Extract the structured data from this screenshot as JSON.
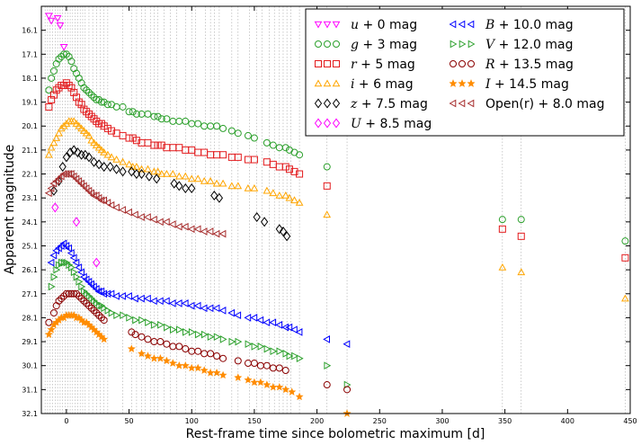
{
  "chart_data": {
    "type": "scatter",
    "title": "",
    "xlabel": "Rest-frame time since bolometric maximum [d]",
    "ylabel": "Apparent magnitude",
    "xlim": [
      -20,
      450
    ],
    "ylim": [
      32.1,
      15.1
    ],
    "x_ticks": [
      0,
      50,
      100,
      150,
      200,
      250,
      300,
      350,
      400,
      450
    ],
    "x_tick_labels": [
      "0",
      "50",
      "100",
      "150",
      "200",
      "250",
      "300",
      "350",
      "400",
      "450"
    ],
    "y_ticks": [
      16.1,
      17.1,
      18.1,
      19.1,
      20.1,
      21.1,
      22.1,
      23.1,
      24.1,
      25.1,
      26.1,
      27.1,
      28.1,
      29.1,
      30.1,
      31.1,
      32.1
    ],
    "y_tick_labels": [
      "16.1",
      "17.1",
      "18.1",
      "19.1",
      "20.1",
      "21.1",
      "22.1",
      "23.1",
      "24.1",
      "25.1",
      "26.1",
      "27.1",
      "28.1",
      "29.1",
      "30.1",
      "31.1",
      "32.1"
    ],
    "epoch_lines": [
      -17,
      -15,
      -13,
      -11,
      -9,
      -7,
      -5,
      -3,
      -1,
      1,
      3,
      5,
      7,
      9,
      11,
      13,
      15,
      18,
      21,
      24,
      27,
      30,
      33,
      45,
      52,
      56,
      60,
      63,
      67,
      70,
      73,
      78,
      83,
      88,
      95,
      100,
      103,
      111,
      115,
      118,
      122,
      132,
      137,
      146,
      152,
      156,
      162,
      166,
      170,
      173,
      176,
      179,
      186,
      208,
      224,
      348,
      363,
      446
    ],
    "legend_position": "top-right",
    "series": [
      {
        "name": "u + 0 mag",
        "label_var": "u",
        "label_rest": " + 0 mag",
        "color": "#ff00ff",
        "marker": "tri-down",
        "x": [
          -14,
          -12,
          -7,
          -5,
          -2
        ],
        "y": [
          15.5,
          15.7,
          15.6,
          15.9,
          16.8
        ]
      },
      {
        "name": "g + 3 mag",
        "label_var": "g",
        "label_rest": " + 3 mag",
        "color": "#2ca02c",
        "marker": "circle",
        "x": [
          -14,
          -12,
          -10,
          -8,
          -6,
          -4,
          -2,
          0,
          2,
          4,
          6,
          8,
          10,
          12,
          14,
          16,
          18,
          20,
          22,
          24,
          26,
          28,
          30,
          33,
          36,
          40,
          45,
          50,
          53,
          56,
          60,
          65,
          70,
          73,
          76,
          80,
          85,
          90,
          95,
          100,
          105,
          110,
          115,
          120,
          125,
          132,
          137,
          145,
          150,
          160,
          165,
          170,
          175,
          178,
          182,
          186,
          208,
          348,
          363,
          446
        ],
        "y": [
          18.6,
          18.1,
          17.8,
          17.5,
          17.3,
          17.2,
          17.1,
          17.1,
          17.2,
          17.4,
          17.7,
          17.9,
          18.1,
          18.3,
          18.5,
          18.6,
          18.7,
          18.8,
          18.9,
          19.0,
          19.0,
          19.1,
          19.1,
          19.2,
          19.2,
          19.3,
          19.3,
          19.5,
          19.5,
          19.6,
          19.6,
          19.6,
          19.7,
          19.7,
          19.8,
          19.8,
          19.9,
          19.9,
          19.9,
          20.0,
          20.0,
          20.1,
          20.1,
          20.1,
          20.2,
          20.3,
          20.4,
          20.5,
          20.6,
          20.8,
          20.9,
          21.0,
          21.0,
          21.1,
          21.2,
          21.3,
          21.8,
          24.0,
          24.0,
          24.9
        ]
      },
      {
        "name": "r + 5 mag",
        "label_var": "r",
        "label_rest": " + 5 mag",
        "color": "#e31a1c",
        "marker": "square",
        "x": [
          -14,
          -12,
          -10,
          -8,
          -6,
          -4,
          -2,
          0,
          2,
          4,
          6,
          8,
          10,
          12,
          14,
          16,
          18,
          20,
          22,
          24,
          26,
          28,
          30,
          33,
          36,
          40,
          45,
          50,
          53,
          56,
          60,
          65,
          70,
          73,
          76,
          80,
          85,
          90,
          95,
          100,
          105,
          110,
          115,
          120,
          125,
          132,
          137,
          145,
          150,
          160,
          165,
          170,
          175,
          178,
          182,
          186,
          208,
          348,
          363,
          446
        ],
        "y": [
          19.3,
          19.0,
          18.8,
          18.6,
          18.5,
          18.4,
          18.4,
          18.3,
          18.4,
          18.5,
          18.7,
          18.9,
          19.1,
          19.2,
          19.4,
          19.5,
          19.6,
          19.7,
          19.8,
          19.9,
          20.0,
          20.0,
          20.1,
          20.2,
          20.3,
          20.4,
          20.5,
          20.6,
          20.6,
          20.7,
          20.8,
          20.8,
          20.9,
          20.9,
          20.9,
          21.0,
          21.0,
          21.0,
          21.1,
          21.1,
          21.2,
          21.2,
          21.3,
          21.3,
          21.3,
          21.4,
          21.4,
          21.5,
          21.5,
          21.6,
          21.7,
          21.8,
          21.8,
          21.9,
          22.0,
          22.1,
          22.6,
          24.4,
          24.7,
          25.6
        ]
      },
      {
        "name": "i + 6 mag",
        "label_var": "i",
        "label_rest": " + 6 mag",
        "color": "#ffa500",
        "marker": "tri-up",
        "x": [
          -14,
          -12,
          -10,
          -8,
          -6,
          -4,
          -2,
          0,
          2,
          4,
          6,
          8,
          10,
          12,
          14,
          16,
          18,
          20,
          22,
          24,
          26,
          28,
          30,
          33,
          36,
          40,
          45,
          50,
          53,
          56,
          60,
          65,
          70,
          73,
          76,
          80,
          85,
          90,
          95,
          100,
          105,
          110,
          115,
          120,
          125,
          132,
          137,
          145,
          150,
          160,
          165,
          170,
          175,
          178,
          182,
          186,
          208,
          348,
          363,
          446
        ],
        "y": [
          21.3,
          21.0,
          20.8,
          20.6,
          20.4,
          20.2,
          20.1,
          20.0,
          19.9,
          19.9,
          19.9,
          20.0,
          20.1,
          20.2,
          20.3,
          20.4,
          20.5,
          20.7,
          20.8,
          20.9,
          21.0,
          21.1,
          21.2,
          21.3,
          21.4,
          21.5,
          21.6,
          21.7,
          21.8,
          21.8,
          21.9,
          21.9,
          22.0,
          22.0,
          22.1,
          22.1,
          22.1,
          22.2,
          22.2,
          22.3,
          22.3,
          22.4,
          22.4,
          22.5,
          22.5,
          22.6,
          22.6,
          22.7,
          22.7,
          22.8,
          22.9,
          23.0,
          23.0,
          23.1,
          23.2,
          23.3,
          23.8,
          26.0,
          26.2,
          27.3
        ]
      },
      {
        "name": "z + 7.5 mag",
        "label_var": "z",
        "label_rest": " + 7.5 mag",
        "color": "#000000",
        "marker": "diamond",
        "x": [
          -10,
          -6,
          -3,
          0,
          3,
          6,
          9,
          12,
          15,
          18,
          22,
          26,
          30,
          35,
          40,
          45,
          52,
          56,
          60,
          66,
          72,
          86,
          90,
          95,
          100,
          118,
          122,
          152,
          158,
          170,
          173,
          176
        ],
        "y": [
          22.8,
          22.4,
          21.8,
          21.4,
          21.2,
          21.1,
          21.2,
          21.3,
          21.3,
          21.4,
          21.6,
          21.7,
          21.8,
          21.8,
          21.9,
          22.0,
          22.0,
          22.1,
          22.1,
          22.2,
          22.3,
          22.5,
          22.6,
          22.7,
          22.7,
          23.0,
          23.1,
          23.9,
          24.1,
          24.4,
          24.5,
          24.7
        ]
      },
      {
        "name": "U + 8.5 mag",
        "label_var": "U",
        "label_rest": " + 8.5 mag",
        "color": "#ff00ff",
        "marker": "diamond",
        "x": [
          -9,
          8,
          24
        ],
        "y": [
          23.5,
          24.1,
          25.8
        ]
      },
      {
        "name": "B + 10.0 mag",
        "label_var": "B",
        "label_rest": " + 10.0 mag",
        "color": "#0000ff",
        "marker": "tri-left",
        "x": [
          -12,
          -10,
          -8,
          -6,
          -4,
          -2,
          0,
          2,
          4,
          6,
          8,
          10,
          12,
          14,
          16,
          18,
          20,
          22,
          24,
          26,
          28,
          30,
          33,
          36,
          40,
          45,
          50,
          55,
          60,
          65,
          70,
          75,
          80,
          85,
          90,
          95,
          100,
          105,
          110,
          115,
          120,
          125,
          132,
          137,
          145,
          150,
          155,
          160,
          165,
          170,
          175,
          178,
          182,
          186,
          208,
          224
        ],
        "y": [
          25.8,
          25.5,
          25.3,
          25.2,
          25.1,
          25.0,
          25.1,
          25.2,
          25.4,
          25.6,
          25.8,
          26.0,
          26.2,
          26.4,
          26.5,
          26.6,
          26.7,
          26.8,
          26.9,
          27.0,
          27.0,
          27.1,
          27.1,
          27.1,
          27.2,
          27.2,
          27.2,
          27.3,
          27.3,
          27.3,
          27.4,
          27.4,
          27.4,
          27.5,
          27.5,
          27.5,
          27.6,
          27.6,
          27.7,
          27.7,
          27.7,
          27.8,
          27.9,
          28.0,
          28.1,
          28.1,
          28.2,
          28.3,
          28.3,
          28.4,
          28.5,
          28.5,
          28.6,
          28.7,
          29.0,
          29.2
        ]
      },
      {
        "name": "V + 12.0 mag",
        "label_var": "V",
        "label_rest": " + 12.0 mag",
        "color": "#2ca02c",
        "marker": "tri-right",
        "x": [
          -12,
          -10,
          -8,
          -6,
          -4,
          -2,
          0,
          2,
          4,
          6,
          8,
          10,
          12,
          14,
          16,
          18,
          20,
          22,
          24,
          26,
          28,
          30,
          33,
          36,
          40,
          45,
          50,
          55,
          60,
          65,
          70,
          75,
          80,
          85,
          90,
          95,
          100,
          105,
          110,
          115,
          120,
          125,
          132,
          137,
          145,
          150,
          155,
          160,
          165,
          170,
          175,
          178,
          182,
          186,
          208,
          224
        ],
        "y": [
          26.8,
          26.4,
          26.1,
          25.9,
          25.8,
          25.8,
          25.8,
          25.9,
          26.0,
          26.2,
          26.4,
          26.6,
          26.8,
          27.0,
          27.1,
          27.2,
          27.3,
          27.4,
          27.5,
          27.6,
          27.6,
          27.7,
          27.8,
          27.9,
          28.0,
          28.0,
          28.1,
          28.2,
          28.2,
          28.3,
          28.4,
          28.4,
          28.5,
          28.6,
          28.6,
          28.7,
          28.7,
          28.8,
          28.8,
          28.9,
          28.9,
          29.0,
          29.1,
          29.1,
          29.2,
          29.3,
          29.3,
          29.4,
          29.5,
          29.5,
          29.6,
          29.7,
          29.7,
          29.8,
          30.1,
          30.9
        ]
      },
      {
        "name": "R + 13.5 mag",
        "label_var": "R",
        "label_rest": " + 13.5 mag",
        "color": "#8b0000",
        "marker": "circle",
        "x": [
          -14,
          -10,
          -8,
          -6,
          -4,
          -2,
          0,
          2,
          4,
          6,
          8,
          10,
          12,
          14,
          16,
          18,
          20,
          22,
          24,
          26,
          28,
          30,
          52,
          55,
          60,
          65,
          70,
          75,
          80,
          85,
          90,
          95,
          100,
          105,
          110,
          115,
          120,
          125,
          137,
          145,
          150,
          155,
          160,
          165,
          170,
          175,
          208,
          224
        ],
        "y": [
          28.3,
          27.9,
          27.6,
          27.4,
          27.3,
          27.2,
          27.1,
          27.1,
          27.1,
          27.1,
          27.1,
          27.2,
          27.3,
          27.4,
          27.5,
          27.6,
          27.7,
          27.8,
          27.9,
          28.0,
          28.1,
          28.2,
          28.7,
          28.8,
          28.9,
          29.0,
          29.1,
          29.1,
          29.2,
          29.3,
          29.3,
          29.4,
          29.5,
          29.5,
          29.6,
          29.6,
          29.7,
          29.8,
          29.9,
          30.0,
          30.0,
          30.1,
          30.1,
          30.2,
          30.2,
          30.3,
          30.9,
          31.1
        ]
      },
      {
        "name": "I + 14.5 mag",
        "label_var": "I",
        "label_rest": " + 14.5 mag",
        "color": "#ff8c00",
        "marker": "star",
        "x": [
          -14,
          -12,
          -10,
          -8,
          -6,
          -4,
          -2,
          0,
          2,
          4,
          6,
          8,
          10,
          12,
          14,
          16,
          18,
          20,
          22,
          24,
          26,
          28,
          30,
          52,
          60,
          65,
          70,
          75,
          80,
          85,
          90,
          95,
          100,
          105,
          110,
          115,
          120,
          125,
          137,
          145,
          150,
          155,
          160,
          165,
          170,
          175,
          180,
          186,
          224
        ],
        "y": [
          28.8,
          28.6,
          28.4,
          28.3,
          28.2,
          28.1,
          28.1,
          28.0,
          28.0,
          28.0,
          28.0,
          28.1,
          28.1,
          28.2,
          28.3,
          28.3,
          28.4,
          28.5,
          28.6,
          28.7,
          28.8,
          28.9,
          29.0,
          29.4,
          29.6,
          29.7,
          29.8,
          29.8,
          29.9,
          30.0,
          30.1,
          30.1,
          30.2,
          30.2,
          30.3,
          30.4,
          30.4,
          30.5,
          30.6,
          30.7,
          30.8,
          30.8,
          30.9,
          31.0,
          31.0,
          31.1,
          31.2,
          31.4,
          32.1
        ]
      },
      {
        "name": "Open(r) + 8.0 mag",
        "label_var": "",
        "label_rest": "Open(r) + 8.0 mag",
        "color": "#a52a2a",
        "marker": "tri-left",
        "x": [
          -14,
          -12,
          -10,
          -8,
          -6,
          -4,
          -2,
          0,
          2,
          4,
          6,
          8,
          10,
          12,
          14,
          16,
          18,
          20,
          22,
          24,
          26,
          28,
          30,
          33,
          36,
          40,
          45,
          50,
          55,
          60,
          65,
          70,
          75,
          80,
          85,
          90,
          95,
          100,
          105,
          110,
          115,
          120,
          125
        ],
        "y": [
          22.9,
          22.7,
          22.5,
          22.4,
          22.3,
          22.2,
          22.1,
          22.1,
          22.1,
          22.1,
          22.2,
          22.3,
          22.4,
          22.5,
          22.6,
          22.7,
          22.8,
          22.9,
          23.0,
          23.0,
          23.1,
          23.2,
          23.2,
          23.3,
          23.4,
          23.5,
          23.6,
          23.7,
          23.8,
          23.9,
          23.9,
          24.0,
          24.1,
          24.1,
          24.2,
          24.3,
          24.3,
          24.4,
          24.4,
          24.5,
          24.5,
          24.6,
          24.6
        ]
      }
    ]
  }
}
